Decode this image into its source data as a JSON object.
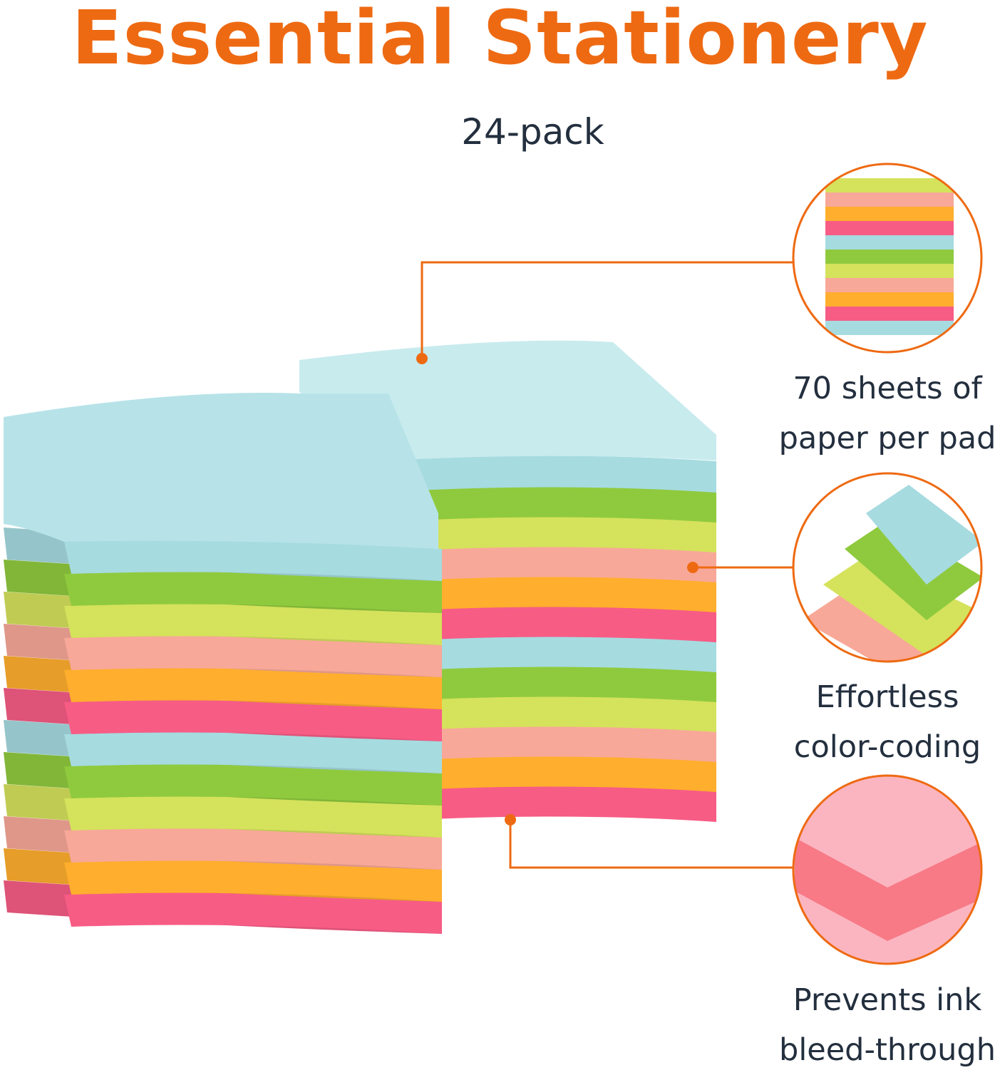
{
  "header": {
    "title": "Essential Stationery",
    "subtitle": "24-pack"
  },
  "colors": {
    "accent": "#ee6a12",
    "text": "#232f3e",
    "note_colors": [
      "#a6dbe0",
      "#8fca3e",
      "#d5e25c",
      "#f8a898",
      "#ffae2e",
      "#f75c85"
    ]
  },
  "features": [
    {
      "line1": "70 sheets of",
      "line2": "paper per pad"
    },
    {
      "line1": "Effortless",
      "line2": "color-coding"
    },
    {
      "line1": "Prevents ink",
      "line2": "bleed-through"
    }
  ]
}
